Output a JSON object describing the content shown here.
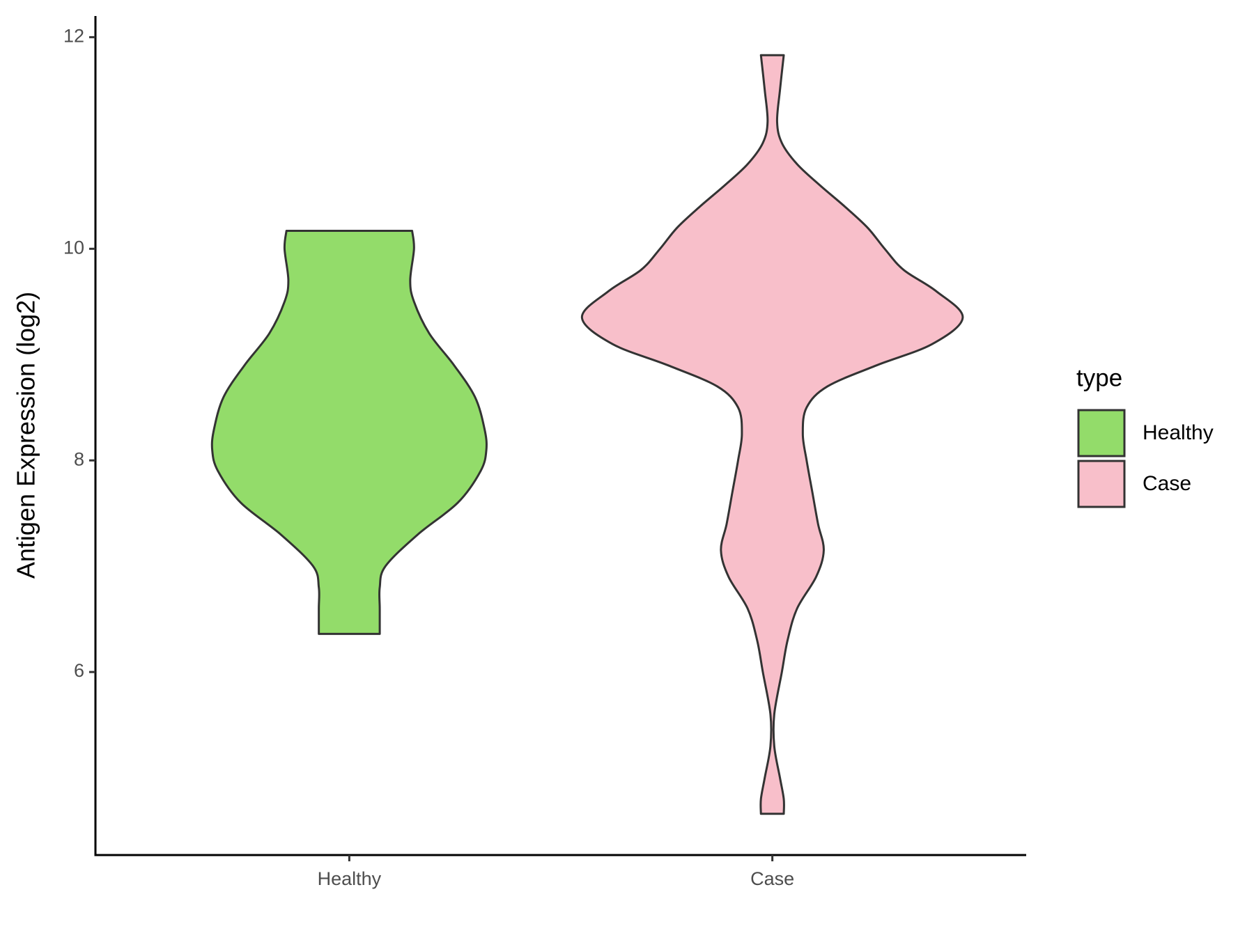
{
  "chart_data": {
    "type": "violin",
    "y_label": "Antigen Expression (log2)",
    "categories": [
      "Healthy",
      "Case"
    ],
    "legend_title": "type",
    "legend_position": "right",
    "ylim": [
      4.27,
      12.2
    ],
    "yticks": [
      6,
      8,
      10,
      12
    ],
    "series": [
      {
        "name": "Healthy",
        "color": "#93dc6a",
        "y": [
          10.17,
          10.0,
          9.7,
          9.5,
          9.2,
          8.9,
          8.6,
          8.3,
          8.1,
          7.9,
          7.6,
          7.3,
          7.0,
          6.8,
          6.6,
          6.36
        ],
        "width": [
          0.33,
          0.34,
          0.32,
          0.34,
          0.42,
          0.55,
          0.66,
          0.71,
          0.72,
          0.69,
          0.57,
          0.36,
          0.19,
          0.16,
          0.16,
          0.16
        ]
      },
      {
        "name": "Case",
        "color": "#f8bfca",
        "y": [
          11.83,
          11.5,
          11.2,
          11.0,
          10.8,
          10.6,
          10.4,
          10.2,
          10.0,
          9.8,
          9.6,
          9.35,
          9.1,
          8.9,
          8.7,
          8.5,
          8.25,
          8.0,
          7.7,
          7.4,
          7.15,
          6.9,
          6.6,
          6.3,
          6.0,
          5.6,
          5.3,
          5.0,
          4.8,
          4.66
        ],
        "width": [
          0.06,
          0.04,
          0.025,
          0.05,
          0.13,
          0.25,
          0.38,
          0.5,
          0.59,
          0.69,
          0.86,
          1.0,
          0.84,
          0.55,
          0.29,
          0.18,
          0.16,
          0.18,
          0.21,
          0.24,
          0.27,
          0.23,
          0.13,
          0.08,
          0.05,
          0.01,
          0.01,
          0.04,
          0.06,
          0.06
        ]
      }
    ]
  }
}
